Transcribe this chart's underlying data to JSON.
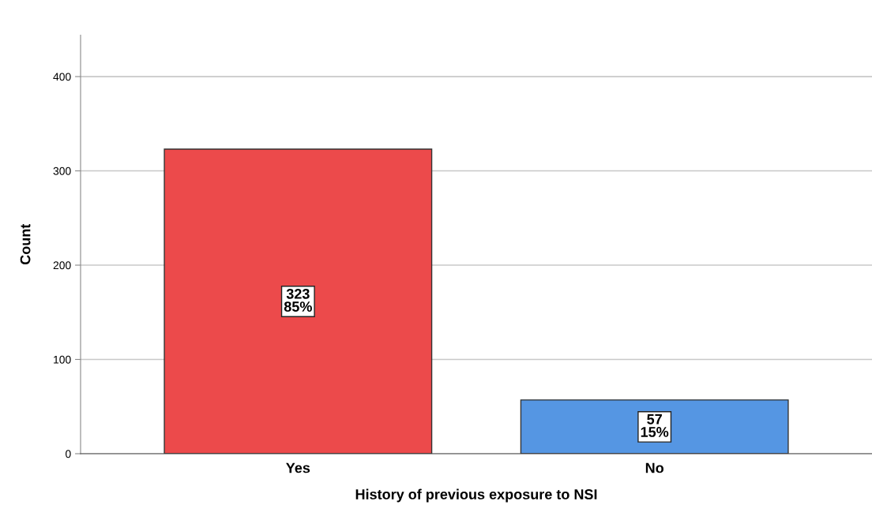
{
  "chart_data": {
    "type": "bar",
    "categories": [
      "Yes",
      "No"
    ],
    "values": [
      323,
      57
    ],
    "colors": [
      "#ec4a4b",
      "#5596e3"
    ],
    "value_labels": [
      "323\n85%",
      "57\n15%"
    ],
    "xlabel": "History of previous exposure to NSI",
    "ylabel": "Count",
    "ylim": [
      0,
      444
    ],
    "yticks": [
      0,
      100,
      200,
      300,
      400
    ],
    "grid": "y",
    "legend": false
  }
}
